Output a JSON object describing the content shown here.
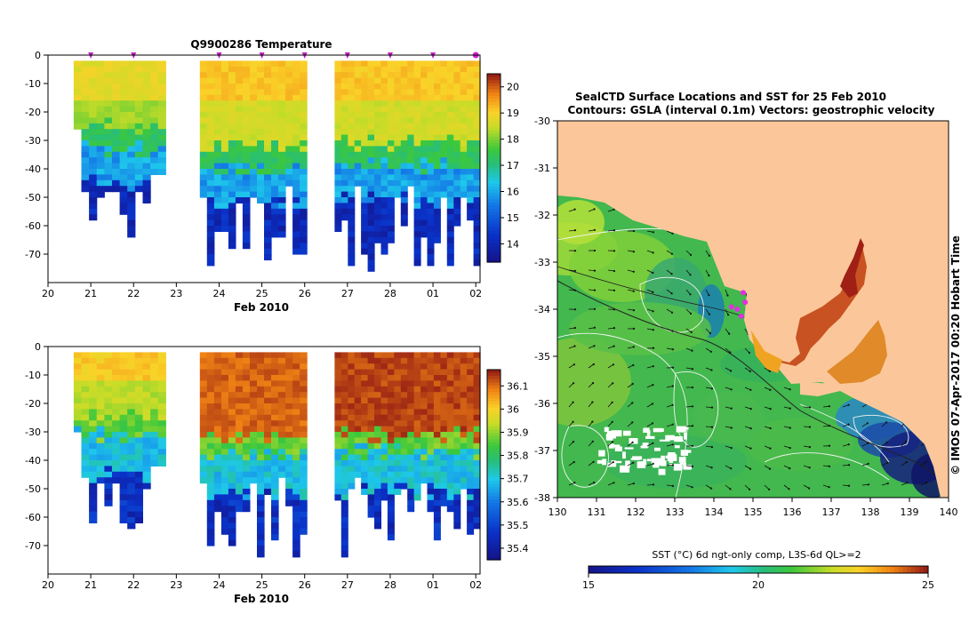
{
  "chart_data": [
    {
      "type": "heatmap",
      "title": "Q9900286  Temperature",
      "xlabel": "Feb 2010",
      "x_ticks": [
        "20",
        "21",
        "22",
        "23",
        "24",
        "25",
        "26",
        "27",
        "28",
        "01",
        "02"
      ],
      "y_ticks": [
        "0",
        "-10",
        "-20",
        "-30",
        "-40",
        "-50",
        "-60",
        "-70"
      ],
      "ylim": [
        -80,
        0
      ],
      "xlim": [
        20,
        30.1
      ],
      "colorbar_ticks": [
        "20",
        "19",
        "18",
        "17",
        "16",
        "15",
        "14"
      ],
      "colorbar_range": [
        13.3,
        20.5
      ],
      "marker_days": [
        21,
        22,
        24,
        25,
        26,
        27,
        28,
        29,
        30
      ],
      "profile_groups": [
        {
          "start": 20.6,
          "end": 22.75,
          "profiles": 12
        },
        {
          "start": 23.55,
          "end": 26.05,
          "profiles": 15
        },
        {
          "start": 26.7,
          "end": 30.1,
          "profiles": 22
        }
      ]
    },
    {
      "type": "heatmap",
      "title": "",
      "xlabel": "Feb 2010",
      "x_ticks": [
        "20",
        "21",
        "22",
        "23",
        "24",
        "25",
        "26",
        "27",
        "28",
        "01",
        "02"
      ],
      "y_ticks": [
        "0",
        "-10",
        "-20",
        "-30",
        "-40",
        "-50",
        "-60",
        "-70"
      ],
      "ylim": [
        -80,
        0
      ],
      "xlim": [
        20,
        30.1
      ],
      "colorbar_ticks": [
        "36.1",
        "36",
        "35.9",
        "35.8",
        "35.7",
        "35.6",
        "35.5",
        "35.4"
      ],
      "colorbar_range": [
        35.35,
        36.17
      ]
    },
    {
      "type": "heatmap",
      "title_line1": "SealCTD Surface Locations and SST for 25 Feb 2010",
      "title_line2": "Contours: GSLA (interval 0.1m) Vectors: geostrophic velocity",
      "x_ticks": [
        "130",
        "131",
        "132",
        "133",
        "134",
        "135",
        "136",
        "137",
        "138",
        "139",
        "140"
      ],
      "y_ticks": [
        "-30",
        "-31",
        "-32",
        "-33",
        "-34",
        "-35",
        "-36",
        "-37",
        "-38"
      ],
      "xlim": [
        130,
        140
      ],
      "ylim": [
        -38,
        -30
      ],
      "colorbar_label": "SST (°C) 6d ngt-only comp, L3S-6d QL>=2",
      "colorbar_ticks": [
        "15",
        "20",
        "25"
      ],
      "colorbar_range": [
        15,
        25
      ],
      "seal_locations": [
        {
          "lon": 134.45,
          "lat": -33.95
        },
        {
          "lon": 134.6,
          "lat": -34.0
        },
        {
          "lon": 134.75,
          "lat": -33.65
        },
        {
          "lon": 134.8,
          "lat": -33.85
        },
        {
          "lon": 134.7,
          "lat": -34.15
        }
      ]
    }
  ],
  "credit": "© IMOS 07-Apr-2017 00:20 Hobart Time"
}
